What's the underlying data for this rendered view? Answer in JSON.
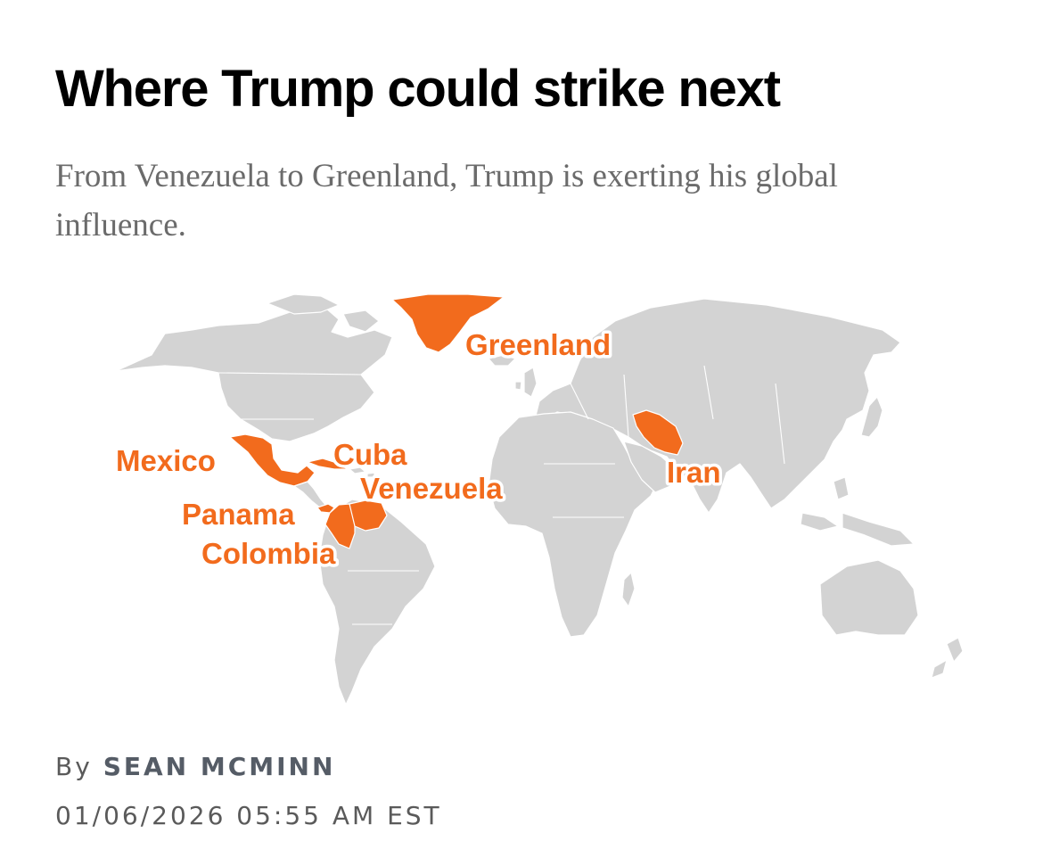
{
  "headline": "Where Trump could strike next",
  "dek": "From Venezuela to Greenland, Trump is exerting his global influence.",
  "map": {
    "base_color": "#d3d3d3",
    "highlight_color": "#f26b1d",
    "labels": {
      "greenland": "Greenland",
      "mexico": "Mexico",
      "cuba": "Cuba",
      "venezuela": "Venezuela",
      "panama": "Panama",
      "colombia": "Colombia",
      "iran": "Iran"
    }
  },
  "byline": {
    "prefix": "By",
    "author": "SEAN MCMINN"
  },
  "timestamp": "01/06/2026 05:55 AM EST"
}
